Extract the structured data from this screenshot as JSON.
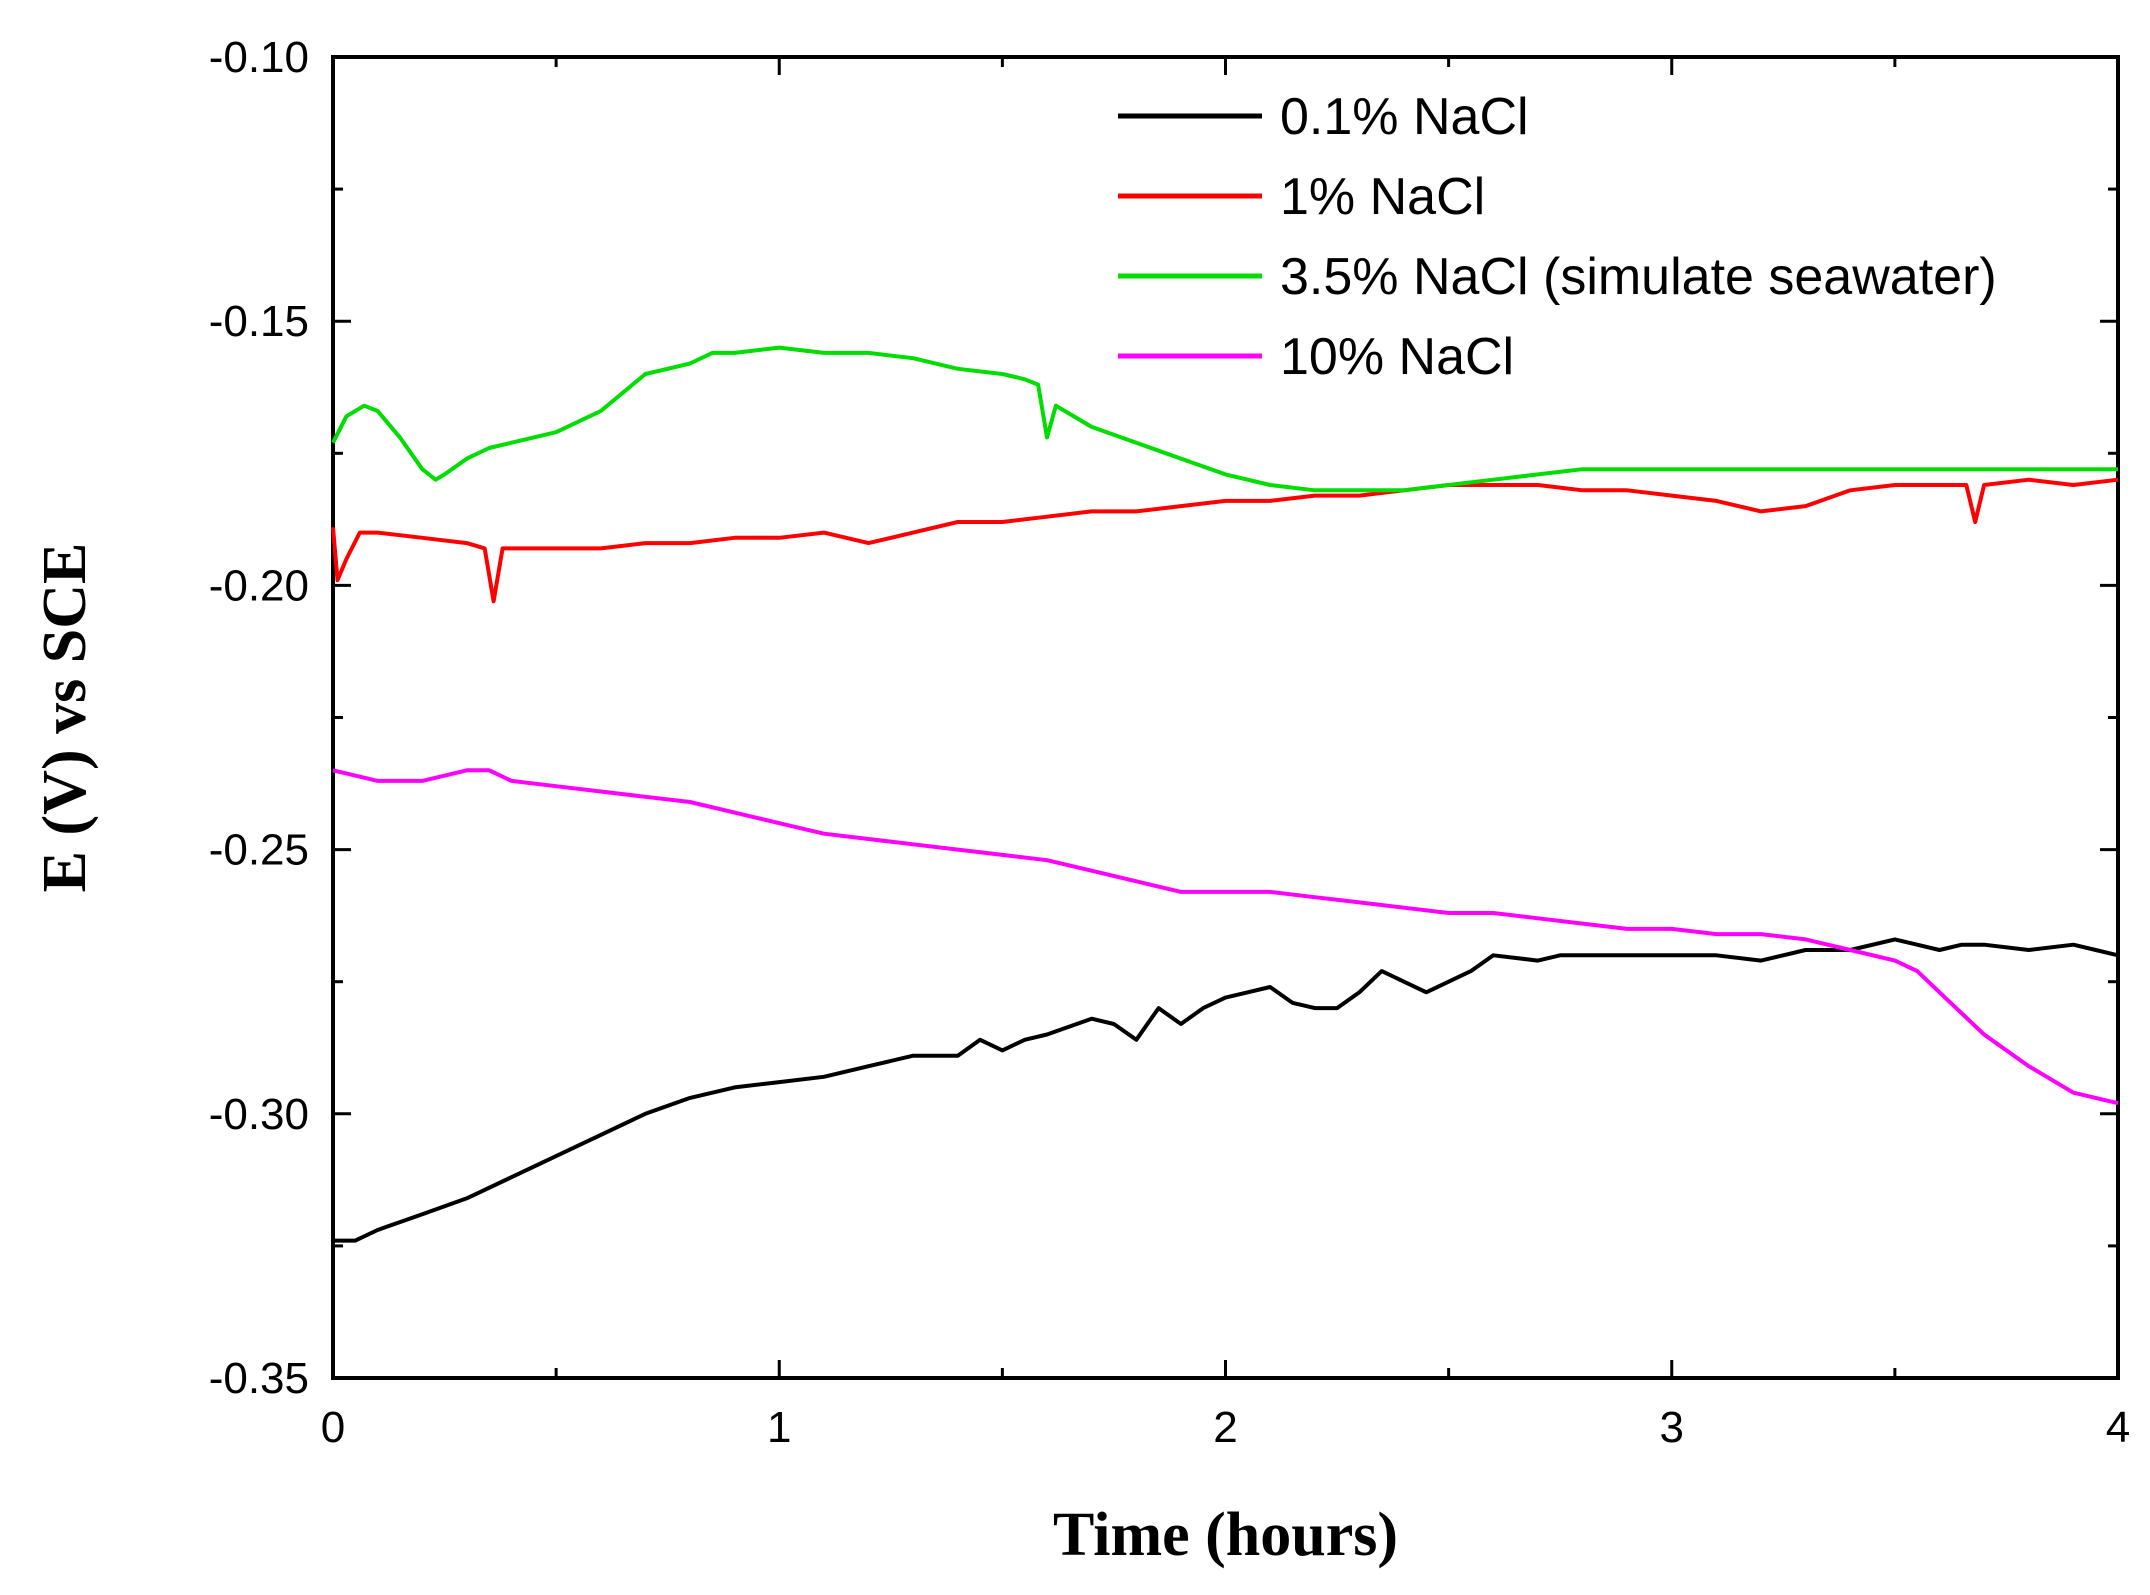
{
  "chart_data": {
    "type": "line",
    "title": "",
    "xlabel": "Time (hours)",
    "ylabel": "E (V) vs SCE",
    "xlim": [
      0,
      4
    ],
    "ylim": [
      -0.35,
      -0.1
    ],
    "x_major_ticks": [
      0,
      1,
      2,
      3,
      4
    ],
    "x_tick_labels": [
      "0",
      "1",
      "2",
      "3",
      "4"
    ],
    "x_minor_ticks": [
      0.5,
      1.5,
      2.5,
      3.5
    ],
    "y_major_ticks": [
      -0.1,
      -0.15,
      -0.2,
      -0.25,
      -0.3,
      -0.35
    ],
    "y_tick_labels": [
      "-0.10",
      "-0.15",
      "-0.20",
      "-0.25",
      "-0.30",
      "-0.35"
    ],
    "y_minor_ticks": [
      -0.125,
      -0.175,
      -0.225,
      -0.275,
      -0.325
    ],
    "grid": false,
    "legend_position": "top-right",
    "series": [
      {
        "name": "0.1% NaCl",
        "color": "#000000",
        "points": [
          [
            0,
            -0.324
          ],
          [
            0.05,
            -0.324
          ],
          [
            0.1,
            -0.322
          ],
          [
            0.2,
            -0.319
          ],
          [
            0.3,
            -0.316
          ],
          [
            0.4,
            -0.312
          ],
          [
            0.5,
            -0.308
          ],
          [
            0.6,
            -0.304
          ],
          [
            0.7,
            -0.3
          ],
          [
            0.8,
            -0.297
          ],
          [
            0.9,
            -0.295
          ],
          [
            1.0,
            -0.294
          ],
          [
            1.1,
            -0.293
          ],
          [
            1.2,
            -0.291
          ],
          [
            1.3,
            -0.289
          ],
          [
            1.4,
            -0.289
          ],
          [
            1.45,
            -0.286
          ],
          [
            1.5,
            -0.288
          ],
          [
            1.55,
            -0.286
          ],
          [
            1.6,
            -0.285
          ],
          [
            1.7,
            -0.282
          ],
          [
            1.75,
            -0.283
          ],
          [
            1.8,
            -0.286
          ],
          [
            1.85,
            -0.28
          ],
          [
            1.9,
            -0.283
          ],
          [
            1.95,
            -0.28
          ],
          [
            2.0,
            -0.278
          ],
          [
            2.05,
            -0.277
          ],
          [
            2.1,
            -0.276
          ],
          [
            2.15,
            -0.279
          ],
          [
            2.2,
            -0.28
          ],
          [
            2.25,
            -0.28
          ],
          [
            2.3,
            -0.277
          ],
          [
            2.35,
            -0.273
          ],
          [
            2.4,
            -0.275
          ],
          [
            2.45,
            -0.277
          ],
          [
            2.5,
            -0.275
          ],
          [
            2.55,
            -0.273
          ],
          [
            2.6,
            -0.27
          ],
          [
            2.7,
            -0.271
          ],
          [
            2.75,
            -0.27
          ],
          [
            2.8,
            -0.27
          ],
          [
            2.9,
            -0.27
          ],
          [
            3.0,
            -0.27
          ],
          [
            3.1,
            -0.27
          ],
          [
            3.2,
            -0.271
          ],
          [
            3.3,
            -0.269
          ],
          [
            3.4,
            -0.269
          ],
          [
            3.5,
            -0.267
          ],
          [
            3.55,
            -0.268
          ],
          [
            3.6,
            -0.269
          ],
          [
            3.65,
            -0.268
          ],
          [
            3.7,
            -0.268
          ],
          [
            3.8,
            -0.269
          ],
          [
            3.9,
            -0.268
          ],
          [
            3.95,
            -0.269
          ],
          [
            4.0,
            -0.27
          ]
        ]
      },
      {
        "name": "1% NaCl",
        "color": "#ff0000",
        "points": [
          [
            0,
            -0.189
          ],
          [
            0.01,
            -0.199
          ],
          [
            0.03,
            -0.195
          ],
          [
            0.06,
            -0.19
          ],
          [
            0.1,
            -0.19
          ],
          [
            0.2,
            -0.191
          ],
          [
            0.3,
            -0.192
          ],
          [
            0.34,
            -0.193
          ],
          [
            0.36,
            -0.203
          ],
          [
            0.38,
            -0.193
          ],
          [
            0.5,
            -0.193
          ],
          [
            0.6,
            -0.193
          ],
          [
            0.7,
            -0.192
          ],
          [
            0.8,
            -0.192
          ],
          [
            0.9,
            -0.191
          ],
          [
            1.0,
            -0.191
          ],
          [
            1.1,
            -0.19
          ],
          [
            1.2,
            -0.192
          ],
          [
            1.3,
            -0.19
          ],
          [
            1.4,
            -0.188
          ],
          [
            1.5,
            -0.188
          ],
          [
            1.6,
            -0.187
          ],
          [
            1.7,
            -0.186
          ],
          [
            1.8,
            -0.186
          ],
          [
            1.9,
            -0.185
          ],
          [
            2.0,
            -0.184
          ],
          [
            2.1,
            -0.184
          ],
          [
            2.2,
            -0.183
          ],
          [
            2.3,
            -0.183
          ],
          [
            2.4,
            -0.182
          ],
          [
            2.5,
            -0.181
          ],
          [
            2.6,
            -0.181
          ],
          [
            2.7,
            -0.181
          ],
          [
            2.8,
            -0.182
          ],
          [
            2.9,
            -0.182
          ],
          [
            3.0,
            -0.183
          ],
          [
            3.1,
            -0.184
          ],
          [
            3.2,
            -0.186
          ],
          [
            3.3,
            -0.185
          ],
          [
            3.4,
            -0.182
          ],
          [
            3.5,
            -0.181
          ],
          [
            3.6,
            -0.181
          ],
          [
            3.66,
            -0.181
          ],
          [
            3.68,
            -0.188
          ],
          [
            3.7,
            -0.181
          ],
          [
            3.8,
            -0.18
          ],
          [
            3.9,
            -0.181
          ],
          [
            4.0,
            -0.18
          ]
        ]
      },
      {
        "name": "3.5% NaCl (simulate seawater)",
        "color": "#00dd00",
        "points": [
          [
            0,
            -0.173
          ],
          [
            0.03,
            -0.168
          ],
          [
            0.07,
            -0.166
          ],
          [
            0.1,
            -0.167
          ],
          [
            0.15,
            -0.172
          ],
          [
            0.2,
            -0.178
          ],
          [
            0.23,
            -0.18
          ],
          [
            0.25,
            -0.179
          ],
          [
            0.3,
            -0.176
          ],
          [
            0.35,
            -0.174
          ],
          [
            0.4,
            -0.173
          ],
          [
            0.5,
            -0.171
          ],
          [
            0.6,
            -0.167
          ],
          [
            0.7,
            -0.16
          ],
          [
            0.75,
            -0.159
          ],
          [
            0.8,
            -0.158
          ],
          [
            0.85,
            -0.156
          ],
          [
            0.9,
            -0.156
          ],
          [
            1.0,
            -0.155
          ],
          [
            1.1,
            -0.156
          ],
          [
            1.2,
            -0.156
          ],
          [
            1.3,
            -0.157
          ],
          [
            1.4,
            -0.159
          ],
          [
            1.5,
            -0.16
          ],
          [
            1.55,
            -0.161
          ],
          [
            1.58,
            -0.162
          ],
          [
            1.6,
            -0.172
          ],
          [
            1.62,
            -0.166
          ],
          [
            1.7,
            -0.17
          ],
          [
            1.8,
            -0.173
          ],
          [
            1.9,
            -0.176
          ],
          [
            2.0,
            -0.179
          ],
          [
            2.1,
            -0.181
          ],
          [
            2.2,
            -0.182
          ],
          [
            2.3,
            -0.182
          ],
          [
            2.4,
            -0.182
          ],
          [
            2.5,
            -0.181
          ],
          [
            2.6,
            -0.18
          ],
          [
            2.7,
            -0.179
          ],
          [
            2.8,
            -0.178
          ],
          [
            2.9,
            -0.178
          ],
          [
            3.0,
            -0.178
          ],
          [
            3.2,
            -0.178
          ],
          [
            3.4,
            -0.178
          ],
          [
            3.6,
            -0.178
          ],
          [
            3.8,
            -0.178
          ],
          [
            4.0,
            -0.178
          ]
        ]
      },
      {
        "name": "10% NaCl",
        "color": "#ff00ff",
        "points": [
          [
            0,
            -0.235
          ],
          [
            0.05,
            -0.236
          ],
          [
            0.1,
            -0.237
          ],
          [
            0.2,
            -0.237
          ],
          [
            0.3,
            -0.235
          ],
          [
            0.35,
            -0.235
          ],
          [
            0.4,
            -0.237
          ],
          [
            0.5,
            -0.238
          ],
          [
            0.6,
            -0.239
          ],
          [
            0.7,
            -0.24
          ],
          [
            0.8,
            -0.241
          ],
          [
            0.9,
            -0.243
          ],
          [
            1.0,
            -0.245
          ],
          [
            1.1,
            -0.247
          ],
          [
            1.2,
            -0.248
          ],
          [
            1.3,
            -0.249
          ],
          [
            1.4,
            -0.25
          ],
          [
            1.5,
            -0.251
          ],
          [
            1.6,
            -0.252
          ],
          [
            1.7,
            -0.254
          ],
          [
            1.8,
            -0.256
          ],
          [
            1.9,
            -0.258
          ],
          [
            2.0,
            -0.258
          ],
          [
            2.1,
            -0.258
          ],
          [
            2.2,
            -0.259
          ],
          [
            2.3,
            -0.26
          ],
          [
            2.4,
            -0.261
          ],
          [
            2.5,
            -0.262
          ],
          [
            2.6,
            -0.262
          ],
          [
            2.7,
            -0.263
          ],
          [
            2.8,
            -0.264
          ],
          [
            2.9,
            -0.265
          ],
          [
            3.0,
            -0.265
          ],
          [
            3.1,
            -0.266
          ],
          [
            3.2,
            -0.266
          ],
          [
            3.3,
            -0.267
          ],
          [
            3.4,
            -0.269
          ],
          [
            3.5,
            -0.271
          ],
          [
            3.55,
            -0.273
          ],
          [
            3.6,
            -0.277
          ],
          [
            3.7,
            -0.285
          ],
          [
            3.8,
            -0.291
          ],
          [
            3.9,
            -0.296
          ],
          [
            4.0,
            -0.298
          ]
        ]
      }
    ]
  }
}
